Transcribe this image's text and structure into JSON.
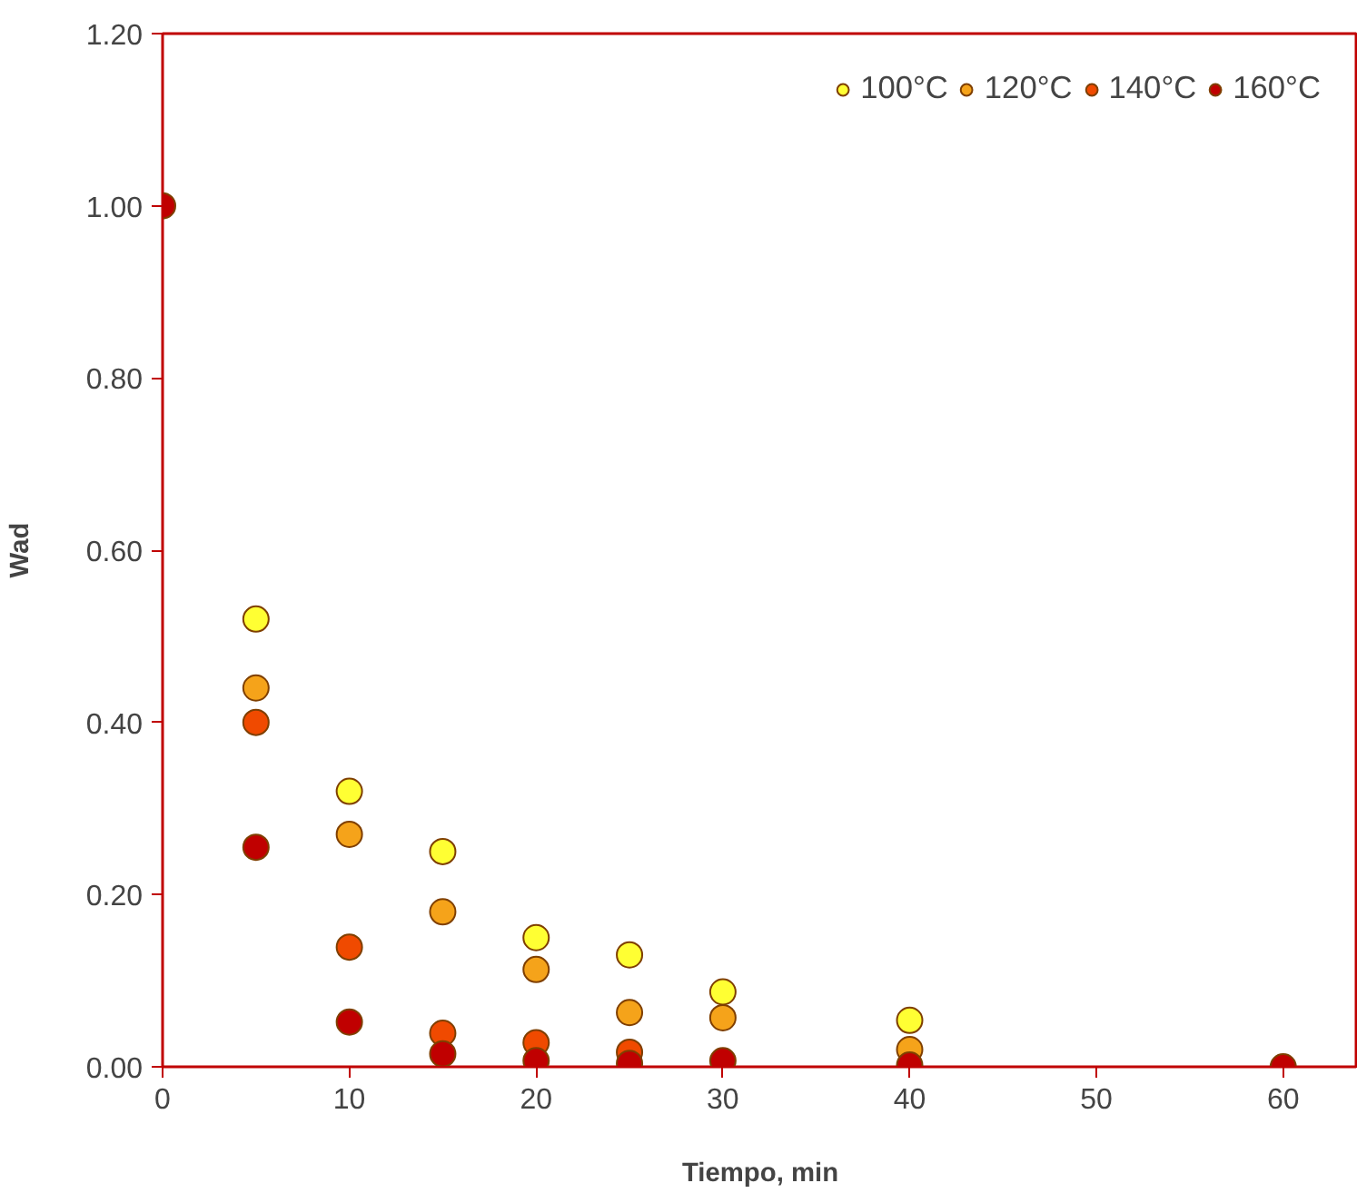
{
  "chart_data": {
    "type": "scatter",
    "xlabel": "Tiempo, min",
    "ylabel": "Wad",
    "x": [
      0,
      5,
      10,
      15,
      20,
      25,
      30,
      40,
      60
    ],
    "series": [
      {
        "name": "100°C",
        "color": "#ffff33",
        "values": [
          null,
          0.52,
          0.32,
          0.25,
          0.15,
          0.13,
          0.087,
          0.054,
          null
        ]
      },
      {
        "name": "120°C",
        "color": "#f5a31a",
        "values": [
          null,
          0.44,
          0.27,
          0.18,
          0.113,
          0.063,
          0.057,
          0.02,
          null
        ]
      },
      {
        "name": "140°C",
        "color": "#f04a00",
        "values": [
          null,
          0.4,
          0.139,
          0.039,
          0.028,
          0.017,
          null,
          null,
          null
        ]
      },
      {
        "name": "160°C",
        "color": "#c00000",
        "values": [
          1.0,
          0.255,
          0.052,
          0.015,
          0.007,
          0.004,
          0.007,
          0.002,
          0.0
        ]
      }
    ],
    "xlim": [
      0,
      64
    ],
    "ylim": [
      0,
      1.2
    ],
    "xticks": [
      0,
      10,
      20,
      30,
      40,
      50,
      60
    ],
    "yticks": [
      {
        "value": 0,
        "label": "0.00"
      },
      {
        "value": 0.2,
        "label": "0.20"
      },
      {
        "value": 0.4,
        "label": "0.40"
      },
      {
        "value": 0.6,
        "label": "0.60"
      },
      {
        "value": 0.8,
        "label": "0.80"
      },
      {
        "value": 1.0,
        "label": "1.00"
      },
      {
        "value": 1.2,
        "label": "1.20"
      }
    ],
    "grid": false,
    "legend": "top right",
    "marker": "circle"
  }
}
